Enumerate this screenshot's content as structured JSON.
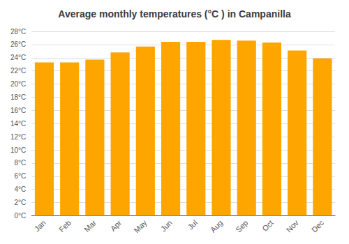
{
  "chart_data": {
    "type": "bar",
    "title": "Average monthly temperatures (°C ) in Campanilla",
    "categories": [
      "Jan",
      "Feb",
      "Mar",
      "Apr",
      "May",
      "Jun",
      "Jul",
      "Aug",
      "Sep",
      "Oct",
      "Nov",
      "Dec"
    ],
    "values": [
      23.3,
      23.3,
      23.7,
      24.8,
      25.7,
      26.4,
      26.4,
      26.7,
      26.6,
      26.3,
      25.1,
      23.9
    ],
    "color": "#FFA500",
    "ylim": [
      0,
      28
    ],
    "yticks": [
      {
        "value": 0,
        "label": "0°C"
      },
      {
        "value": 2,
        "label": "2°C"
      },
      {
        "value": 4,
        "label": "4°C"
      },
      {
        "value": 6,
        "label": "6°C"
      },
      {
        "value": 8,
        "label": "8°C"
      },
      {
        "value": 10,
        "label": "10°C"
      },
      {
        "value": 12,
        "label": "12°C"
      },
      {
        "value": 14,
        "label": "14°C"
      },
      {
        "value": 16,
        "label": "16°C"
      },
      {
        "value": 18,
        "label": "18°C"
      },
      {
        "value": 20,
        "label": "20°C"
      },
      {
        "value": 22,
        "label": "22°C"
      },
      {
        "value": 24,
        "label": "24°C"
      },
      {
        "value": 26,
        "label": "26°C"
      },
      {
        "value": 28,
        "label": "28°C"
      }
    ],
    "grid": true
  }
}
